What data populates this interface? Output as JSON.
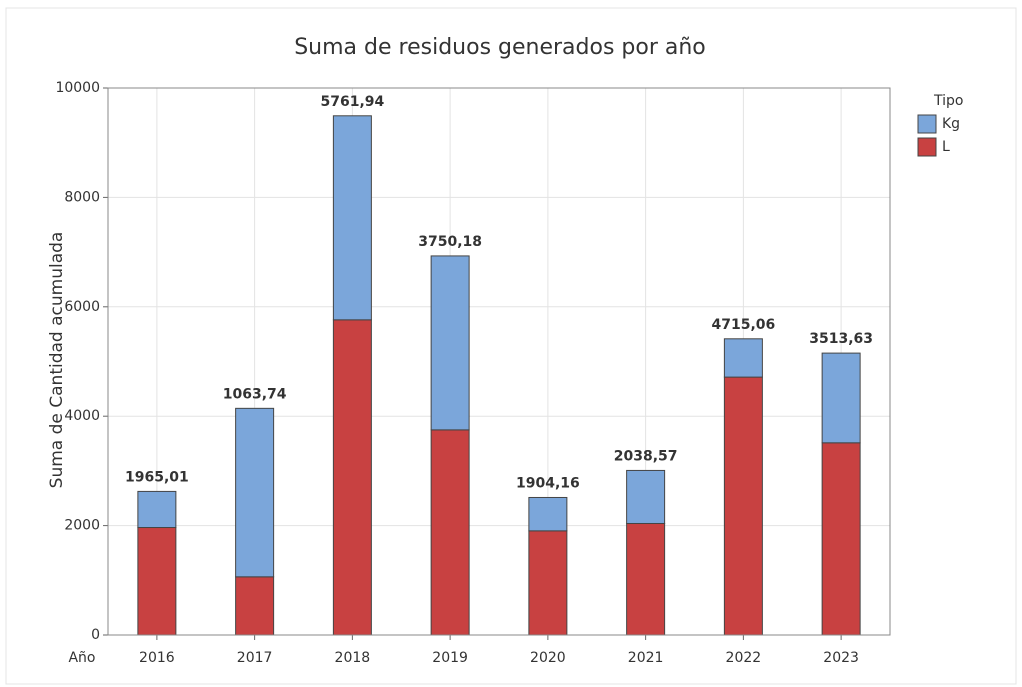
{
  "chart_data": {
    "type": "stacked_bar",
    "title": "Suma de residuos generados por año",
    "x_label": "Año",
    "y_label": "Suma de Cantidad acumulada",
    "categories": [
      "2016",
      "2017",
      "2018",
      "2019",
      "2020",
      "2021",
      "2022",
      "2023"
    ],
    "series": [
      {
        "name": "L",
        "color": "#c84141",
        "values": [
          1965.01,
          1063.74,
          5761.94,
          3750.18,
          1904.16,
          2038.57,
          4715.06,
          3513.63
        ],
        "value_labels": [
          "1965,01",
          "1063,74",
          "5761,94",
          "3750,18",
          "1904,16",
          "2038,57",
          "4715,06",
          "3513,63"
        ]
      },
      {
        "name": "Kg",
        "color": "#7ba6da",
        "values": [
          660,
          3080,
          3730,
          3180,
          610,
          970,
          700,
          1640
        ]
      }
    ],
    "legend_title": "Tipo",
    "ylim": [
      0,
      10000
    ],
    "yticks": [
      0,
      2000,
      4000,
      6000,
      8000,
      10000
    ],
    "grid": true
  }
}
